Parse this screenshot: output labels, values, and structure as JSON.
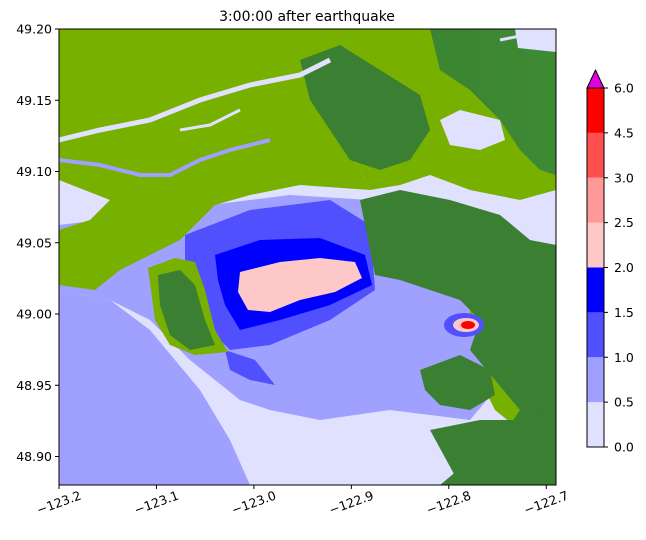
{
  "chart_data": {
    "type": "heatmap",
    "title": "3:00:00 after earthquake",
    "xlabel": "",
    "ylabel": "",
    "xlim": [
      -123.2,
      -122.69
    ],
    "ylim": [
      48.88,
      49.2
    ],
    "x_ticks": [
      -123.2,
      -123.1,
      -123.0,
      -122.9,
      -122.8,
      -122.7
    ],
    "x_tick_labels": [
      "−123.2",
      "−123.1",
      "−123.0",
      "−122.9",
      "−122.8",
      "−122.7"
    ],
    "y_ticks": [
      48.9,
      48.95,
      49.0,
      49.05,
      49.1,
      49.15,
      49.2
    ],
    "y_tick_labels": [
      "48.90",
      "48.95",
      "49.00",
      "49.05",
      "49.10",
      "49.15",
      "49.20"
    ],
    "colorbar": {
      "levels": [
        0.0,
        0.5,
        1.0,
        1.5,
        2.0,
        2.5,
        3.0,
        4.5,
        6.0
      ],
      "level_labels": [
        "0.0",
        "0.5",
        "1.0",
        "1.5",
        "2.0",
        "2.5",
        "3.0",
        "4.5",
        "6.0"
      ],
      "colors": [
        "#e0e0ff",
        "#a0a0ff",
        "#5050ff",
        "#0000ff",
        "#ffc8c8",
        "#ff9999",
        "#ff5050",
        "#ff0000"
      ],
      "over_color": "#e000e0",
      "extend": "max"
    },
    "land_colors": {
      "lowland": "#78b000",
      "highland": "#3a7f32"
    }
  }
}
